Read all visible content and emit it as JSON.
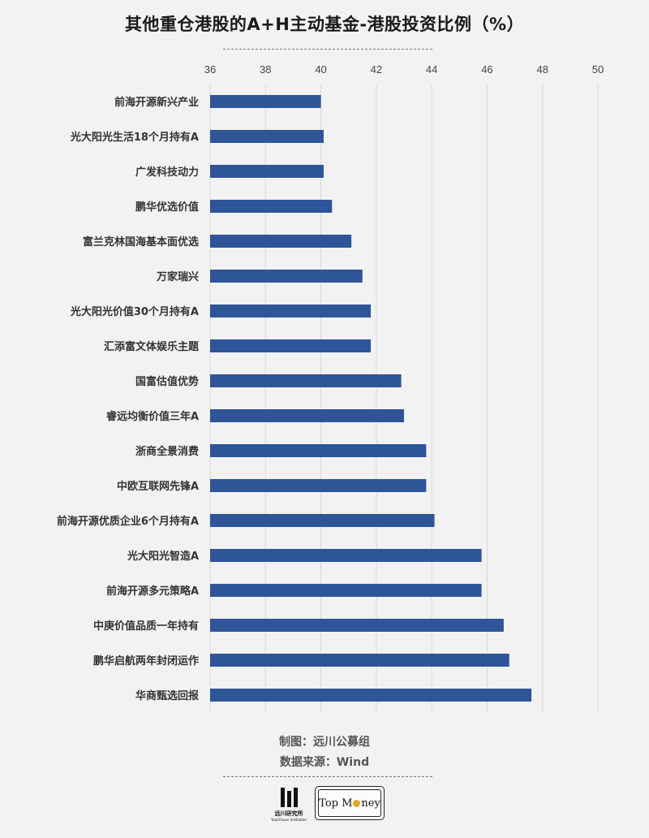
{
  "title": "其他重仓港股的A+H主动基金-港股投资比例（%）",
  "footer": {
    "chart_by": "制图：远川公募组",
    "source": "数据来源：Wind"
  },
  "logos": {
    "yuanchuan_cn": "远川研究所",
    "yuanchuan_en": "YuanChuan Institution",
    "topmoney_pre": "Top M",
    "topmoney_post": "ney"
  },
  "colors": {
    "bar": "#2e5597",
    "grid": "#d9d9d9",
    "background": "#f2f2f2"
  },
  "chart_data": {
    "type": "bar",
    "orientation": "horizontal",
    "title": "其他重仓港股的A+H主动基金-港股投资比例（%）",
    "xlim": [
      36,
      50
    ],
    "xticks": [
      "36",
      "38",
      "40",
      "42",
      "44",
      "46",
      "48",
      "50"
    ],
    "xtick_values": [
      36,
      38,
      40,
      42,
      44,
      46,
      48,
      50
    ],
    "grid": true,
    "categories": [
      "前海开源新兴产业",
      "光大阳光生活18个月持有A",
      "广发科技动力",
      "鹏华优选价值",
      "富兰克林国海基本面优选",
      "万家瑞兴",
      "光大阳光价值30个月持有A",
      "汇添富文体娱乐主题",
      "国富估值优势",
      "睿远均衡价值三年A",
      "浙商全景消费",
      "中欧互联网先锋A",
      "前海开源优质企业6个月持有A",
      "光大阳光智造A",
      "前海开源多元策略A",
      "中庚价值品质一年持有",
      "鹏华启航两年封闭运作",
      "华商甄选回报"
    ],
    "values": [
      40.0,
      40.1,
      40.1,
      40.4,
      41.1,
      41.5,
      41.8,
      41.8,
      42.9,
      43.0,
      43.8,
      43.8,
      44.1,
      45.8,
      45.8,
      46.6,
      46.8,
      47.6
    ]
  }
}
